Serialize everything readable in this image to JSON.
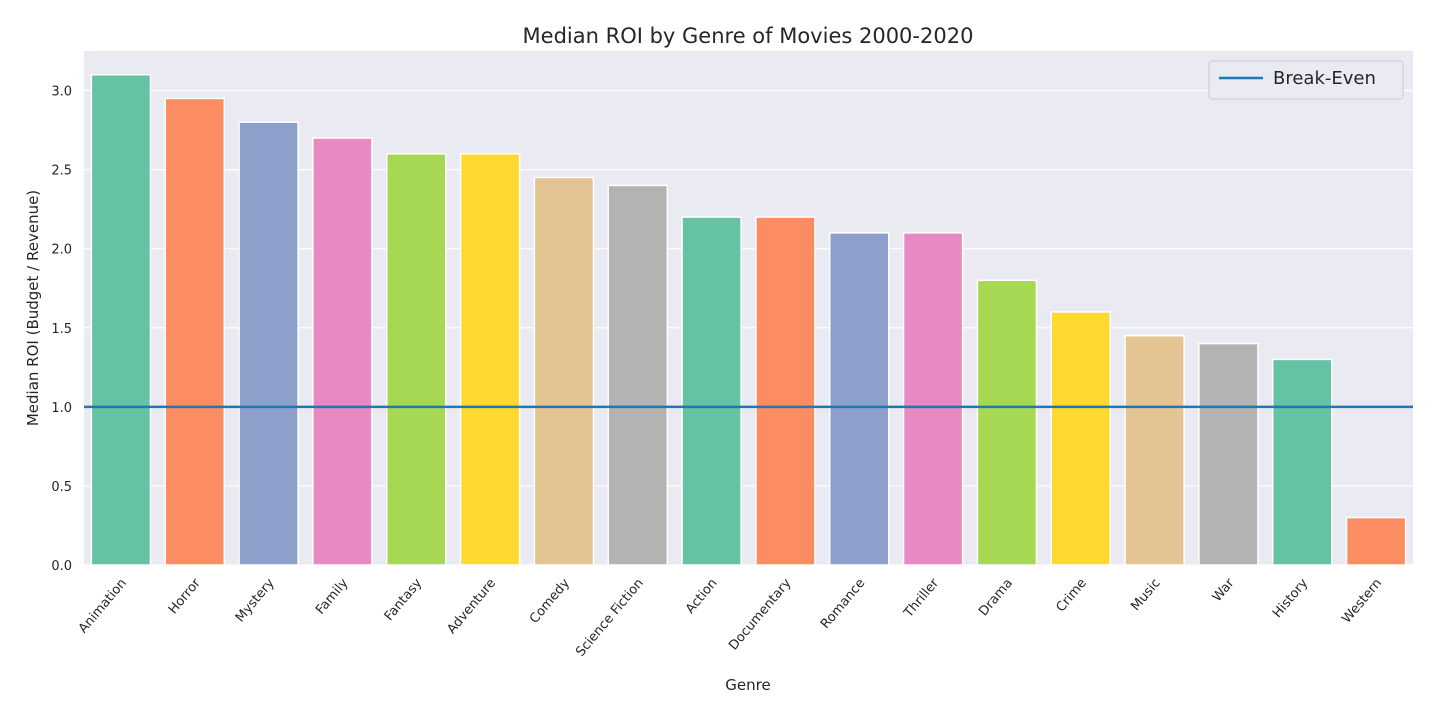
{
  "chart_data": {
    "type": "bar",
    "title": "Median ROI by Genre of Movies 2000-2020",
    "xlabel": "Genre",
    "ylabel": "Median ROI (Budget / Revenue)",
    "categories": [
      "Animation",
      "Horror",
      "Mystery",
      "Family",
      "Fantasy",
      "Adventure",
      "Comedy",
      "Science Fiction",
      "Action",
      "Documentary",
      "Romance",
      "Thriller",
      "Drama",
      "Crime",
      "Music",
      "War",
      "History",
      "Western"
    ],
    "values": [
      3.1,
      2.95,
      2.8,
      2.7,
      2.6,
      2.6,
      2.45,
      2.4,
      2.2,
      2.2,
      2.1,
      2.1,
      1.8,
      1.6,
      1.45,
      1.4,
      1.3,
      0.3
    ],
    "colors": [
      "#66c2a5",
      "#fc8d62",
      "#8da0cb",
      "#e78ac3",
      "#a6d854",
      "#ffd92f",
      "#e5c494",
      "#b3b3b3",
      "#66c2a5",
      "#fc8d62",
      "#8da0cb",
      "#e78ac3",
      "#a6d854",
      "#ffd92f",
      "#e5c494",
      "#b3b3b3",
      "#66c2a5",
      "#fc8d62"
    ],
    "yticks": [
      "0.0",
      "0.5",
      "1.0",
      "1.5",
      "2.0",
      "2.5",
      "3.0"
    ],
    "ylim": [
      0,
      3.25
    ],
    "grid": true,
    "background_color": "#eaeaf2",
    "reference_line": {
      "name": "Break-Even",
      "value": 1.0,
      "color": "#1f77b4"
    },
    "legend": {
      "placement": "top-right",
      "entries": [
        "Break-Even"
      ]
    }
  }
}
